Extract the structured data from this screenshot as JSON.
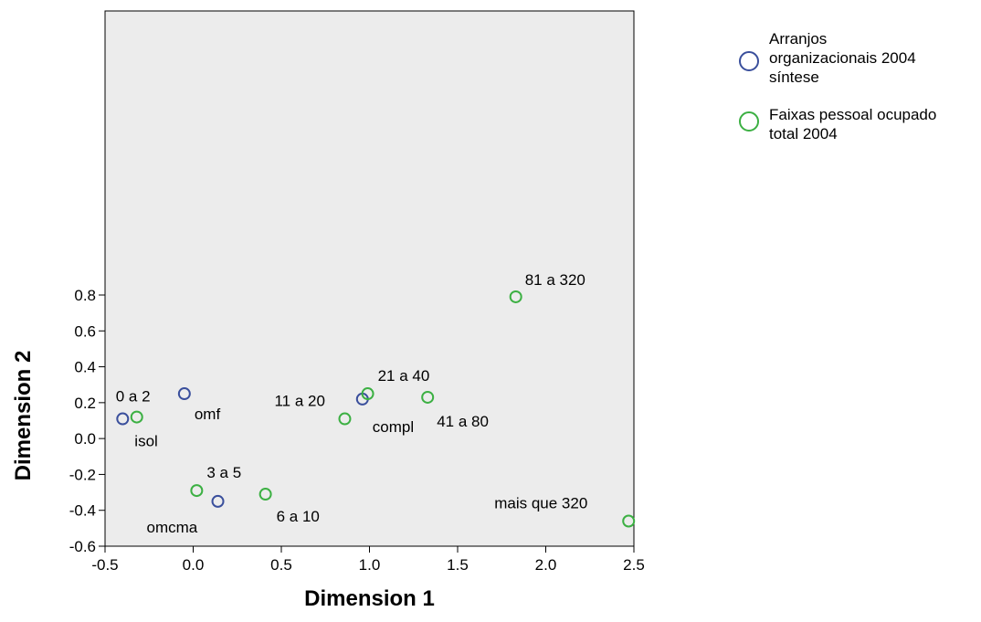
{
  "chart_data": {
    "type": "scatter",
    "xlabel": "Dimension 1",
    "ylabel": "Dimension 2",
    "xlim": [
      -0.5,
      2.5
    ],
    "ylim": [
      -0.6,
      0.8
    ],
    "x_ticks": [
      "-0.5",
      "0.0",
      "0.5",
      "1.0",
      "1.5",
      "2.0",
      "2.5"
    ],
    "y_ticks": [
      "-0.6",
      "-0.4",
      "-0.2",
      "0.0",
      "0.2",
      "0.4",
      "0.6",
      "0.8"
    ],
    "legend_position": "top-right",
    "series": [
      {
        "name": "Arranjos organizacionais 2004 síntese",
        "legend_lines": [
          "Arranjos",
          "organizacionais 2004",
          "síntese"
        ],
        "color": "#3a4f9c",
        "points": [
          {
            "label": "isol",
            "x": -0.4,
            "y": 0.11
          },
          {
            "label": "omf",
            "x": -0.05,
            "y": 0.25
          },
          {
            "label": "omcma",
            "x": 0.14,
            "y": -0.35
          },
          {
            "label": "compl",
            "x": 0.96,
            "y": 0.22
          }
        ]
      },
      {
        "name": "Faixas pessoal ocupado total 2004",
        "legend_lines": [
          "Faixas pessoal ocupado",
          "total 2004"
        ],
        "color": "#3cb043",
        "points": [
          {
            "label": "0 a 2",
            "x": -0.32,
            "y": 0.12
          },
          {
            "label": "3 a 5",
            "x": 0.02,
            "y": -0.29
          },
          {
            "label": "6 a 10",
            "x": 0.41,
            "y": -0.31
          },
          {
            "label": "11 a 20",
            "x": 0.86,
            "y": 0.11
          },
          {
            "label": "21 a 40",
            "x": 0.99,
            "y": 0.25
          },
          {
            "label": "41 a 80",
            "x": 1.33,
            "y": 0.23
          },
          {
            "label": "81 a 320",
            "x": 1.83,
            "y": 0.79
          },
          {
            "label": "mais que 320",
            "x": 2.47,
            "y": -0.46
          }
        ]
      }
    ]
  }
}
